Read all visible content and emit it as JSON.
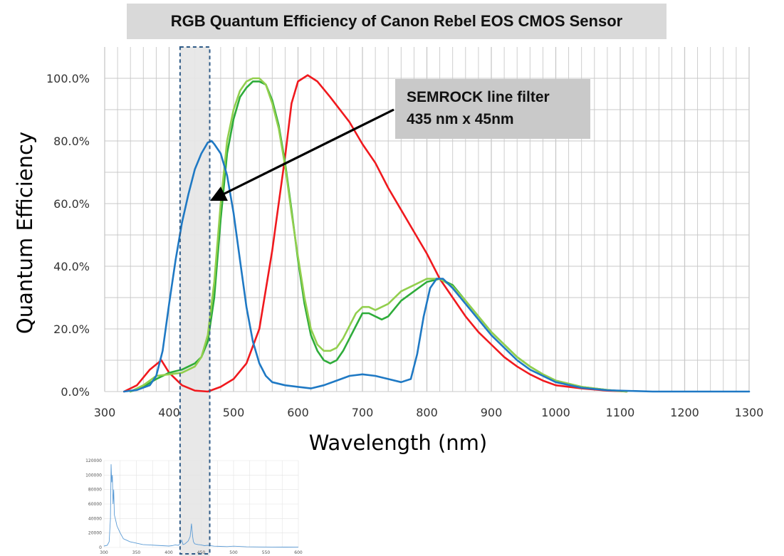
{
  "title": "RGB Quantum Efficiency of Canon Rebel EOS CMOS Sensor",
  "annotation": {
    "line1": "SEMROCK line filter",
    "line2": "435 nm x 45nm"
  },
  "colors": {
    "red": "#f0191e",
    "green_dark": "#2eac3a",
    "green_light": "#92cf4e",
    "blue": "#1f79c4",
    "grid": "#c8c8c8",
    "band_fill": "#e6e6e6",
    "band_border": "#2f5b87",
    "inset_line": "#5b9bd5"
  },
  "chart_data": [
    {
      "type": "line",
      "title": "",
      "xlabel": "Wavelength (nm)",
      "ylabel": "Quantum Efficiency",
      "xlim": [
        300,
        1300
      ],
      "ylim": [
        0,
        100
      ],
      "grid": true,
      "x_ticks": [
        "300",
        "400",
        "500",
        "600",
        "700",
        "800",
        "900",
        "1000",
        "1100",
        "1200",
        "1300"
      ],
      "y_ticks": [
        "0.0%",
        "20.0%",
        "40.0%",
        "60.0%",
        "80.0%",
        "100.0%"
      ],
      "highlight_band": [
        417,
        463
      ],
      "series": [
        {
          "color": "red",
          "x": [
            330,
            350,
            370,
            388,
            400,
            420,
            440,
            460,
            480,
            500,
            520,
            540,
            560,
            580,
            590,
            600,
            615,
            630,
            650,
            680,
            700,
            720,
            740,
            760,
            780,
            800,
            820,
            840,
            860,
            880,
            900,
            920,
            940,
            960,
            980,
            1000,
            1040,
            1080,
            1110
          ],
          "y": [
            0,
            2,
            7,
            10,
            6,
            2,
            0.3,
            0,
            1.5,
            4,
            9,
            20,
            45,
            75,
            92,
            99,
            101,
            99,
            94,
            86,
            79,
            73,
            65,
            58,
            51,
            44,
            36,
            30,
            24,
            19,
            15,
            11,
            8,
            5.5,
            3.5,
            2,
            1,
            0.3,
            0
          ]
        },
        {
          "color": "green_dark",
          "x": [
            340,
            360,
            380,
            400,
            420,
            440,
            450,
            460,
            470,
            480,
            490,
            500,
            510,
            520,
            530,
            540,
            550,
            560,
            570,
            580,
            590,
            600,
            610,
            620,
            630,
            640,
            650,
            660,
            670,
            680,
            690,
            700,
            710,
            720,
            730,
            740,
            760,
            780,
            800,
            820,
            840,
            860,
            880,
            900,
            920,
            940,
            960,
            980,
            1000,
            1040,
            1080,
            1110
          ],
          "y": [
            0,
            1.5,
            4,
            6,
            7,
            9,
            11,
            16,
            30,
            55,
            76,
            87,
            94,
            97,
            99,
            99,
            98,
            93,
            85,
            73,
            58,
            42,
            28,
            18,
            13,
            10,
            9,
            10,
            13,
            17,
            21,
            25,
            25,
            24,
            23,
            24,
            29,
            32,
            35,
            36,
            34,
            29,
            24,
            19,
            15,
            11,
            8,
            5.5,
            3.5,
            1.5,
            0.5,
            0
          ]
        },
        {
          "color": "green_light",
          "x": [
            340,
            360,
            380,
            400,
            420,
            440,
            450,
            460,
            470,
            480,
            490,
            500,
            510,
            520,
            530,
            540,
            550,
            560,
            570,
            580,
            590,
            600,
            610,
            620,
            630,
            640,
            650,
            660,
            670,
            680,
            690,
            700,
            710,
            720,
            730,
            740,
            760,
            780,
            800,
            820,
            840,
            860,
            880,
            900,
            920,
            940,
            960,
            980,
            1000,
            1040,
            1080,
            1110
          ],
          "y": [
            0,
            2,
            5,
            5.5,
            6,
            8,
            11,
            18,
            35,
            60,
            80,
            90,
            96,
            99,
            100,
            100,
            98,
            92,
            84,
            72,
            57,
            43,
            30,
            20,
            15,
            13,
            13,
            14,
            17,
            21,
            25,
            27,
            27,
            26,
            27,
            28,
            32,
            34,
            36,
            36,
            33.5,
            29,
            24,
            19,
            15,
            11,
            8,
            5.5,
            3.5,
            1.5,
            0.5,
            0
          ]
        },
        {
          "color": "blue",
          "x": [
            330,
            350,
            370,
            380,
            390,
            400,
            410,
            420,
            430,
            440,
            450,
            460,
            466,
            470,
            480,
            490,
            500,
            510,
            520,
            530,
            540,
            550,
            560,
            580,
            600,
            620,
            640,
            660,
            680,
            700,
            720,
            740,
            760,
            775,
            785,
            795,
            805,
            815,
            825,
            840,
            860,
            880,
            900,
            920,
            940,
            960,
            980,
            1000,
            1040,
            1080,
            1150,
            1200,
            1300
          ],
          "y": [
            0,
            0.5,
            2,
            5,
            13,
            28,
            42,
            54,
            63,
            71,
            76,
            79.5,
            80,
            79,
            76,
            69,
            57,
            42,
            27,
            16,
            9,
            5,
            3,
            2,
            1.5,
            1,
            2,
            3.5,
            5,
            5.5,
            5,
            4,
            3,
            4,
            12,
            24,
            33,
            36,
            36,
            33,
            28,
            23,
            18,
            14,
            10,
            7,
            5,
            3,
            1.2,
            0.4,
            0,
            0,
            0
          ]
        }
      ]
    },
    {
      "type": "line",
      "title": "",
      "xlim": [
        300,
        600
      ],
      "ylim": [
        0,
        120000
      ],
      "grid": true,
      "x_ticks": [
        "300",
        "350",
        "400",
        "450",
        "500",
        "550",
        "600"
      ],
      "y_ticks": [
        "0",
        "20000",
        "40000",
        "60000",
        "80000",
        "100000",
        "120000"
      ],
      "series": [
        {
          "color": "inset_line",
          "x": [
            300,
            305,
            308,
            310,
            311,
            312,
            313,
            314,
            315,
            316,
            318,
            320,
            322,
            325,
            330,
            335,
            340,
            350,
            360,
            370,
            380,
            390,
            400,
            405,
            410,
            415,
            418,
            420,
            422,
            425,
            430,
            433,
            435,
            436,
            437,
            438,
            440,
            445,
            450,
            455,
            460,
            470,
            480,
            490,
            500,
            520,
            540,
            560,
            580,
            600
          ],
          "y": [
            2000,
            3000,
            8000,
            40000,
            115000,
            90000,
            100000,
            60000,
            80000,
            45000,
            38000,
            30000,
            26000,
            20000,
            12000,
            10000,
            8000,
            6000,
            4000,
            3500,
            3000,
            2500,
            2000,
            2500,
            3500,
            3000,
            6000,
            10000,
            4000,
            5000,
            9000,
            15000,
            33000,
            22000,
            14000,
            8000,
            5000,
            4000,
            3500,
            2500,
            3000,
            1800,
            1500,
            1200,
            1800,
            900,
            700,
            600,
            500,
            400
          ]
        }
      ]
    }
  ]
}
